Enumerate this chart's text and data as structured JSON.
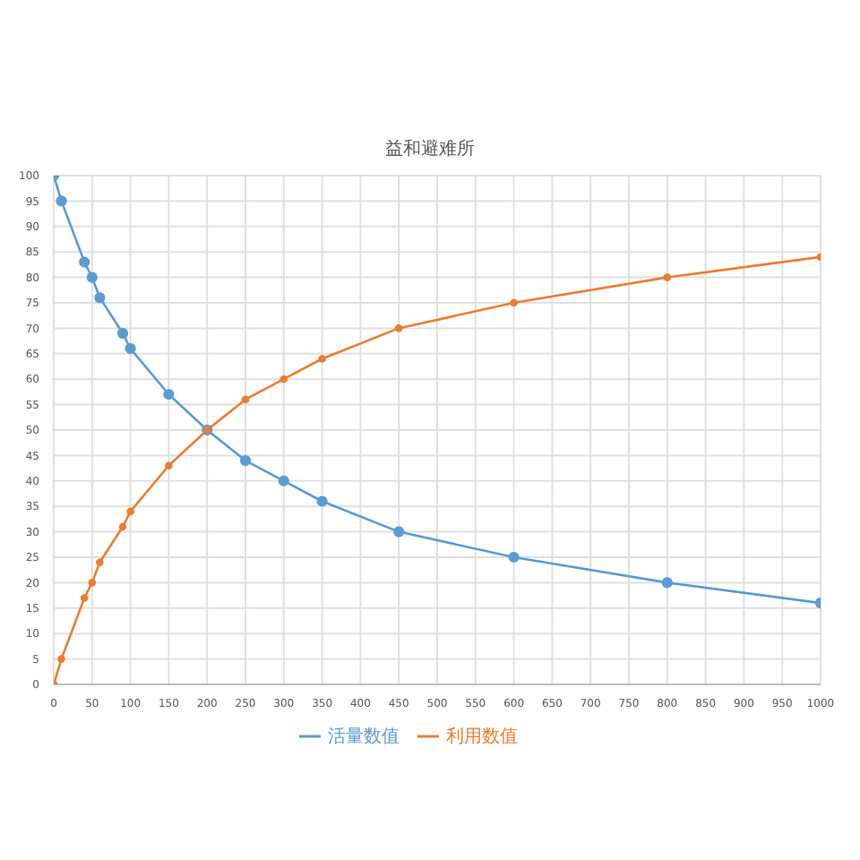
{
  "chart_data": {
    "type": "line",
    "title": "益和避难所",
    "x": [
      0,
      10,
      40,
      50,
      60,
      90,
      100,
      150,
      200,
      250,
      300,
      350,
      450,
      600,
      800,
      1000
    ],
    "series": [
      {
        "name": "活量数值",
        "color": "#5b9bd5",
        "values": [
          100,
          95,
          83,
          80,
          76,
          69,
          66,
          57,
          50,
          44,
          40,
          36,
          30,
          25,
          20,
          16
        ]
      },
      {
        "name": "利用数值",
        "color": "#ed7d31",
        "values": [
          0,
          5,
          17,
          20,
          24,
          31,
          34,
          43,
          50,
          56,
          60,
          64,
          70,
          75,
          80,
          84
        ]
      }
    ],
    "xlim": [
      0,
      1000
    ],
    "xticks": [
      0,
      50,
      100,
      150,
      200,
      250,
      300,
      350,
      400,
      450,
      500,
      550,
      600,
      650,
      700,
      750,
      800,
      850,
      900,
      950,
      1000
    ],
    "ylim": [
      0,
      100
    ],
    "yticks": [
      0,
      5,
      10,
      15,
      20,
      25,
      30,
      35,
      40,
      45,
      50,
      55,
      60,
      65,
      70,
      75,
      80,
      85,
      90,
      95,
      100
    ],
    "grid": true,
    "legend": "bottom",
    "marker": "circle",
    "line_style": "solid"
  }
}
